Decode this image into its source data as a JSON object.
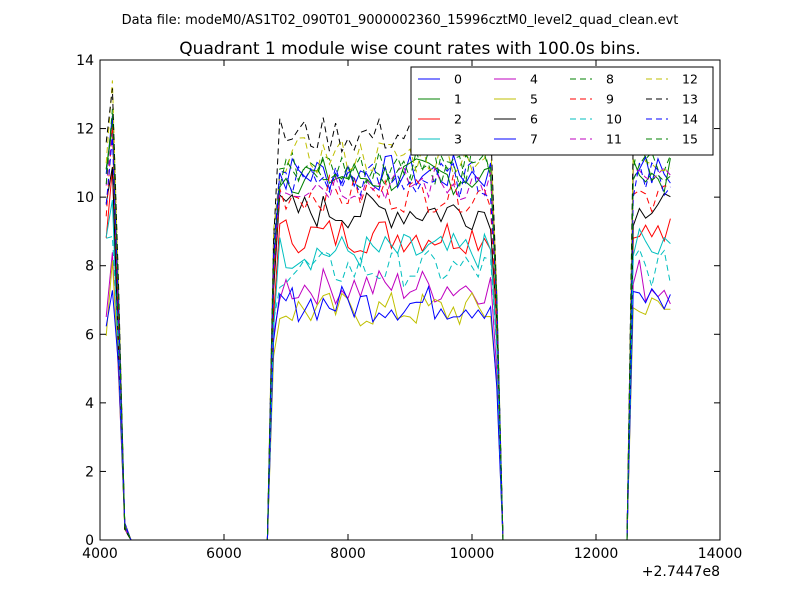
{
  "chart_data": {
    "type": "line",
    "suptitle": "Data file: modeM0/AS1T02_090T01_9000002360_15996cztM0_level2_quad_clean.evt",
    "title": "Quadrant 1 module wise count rates with 100.0s bins.",
    "xlabel": "",
    "ylabel": "",
    "x_offset_label": "+2.7447e8",
    "xlim": [
      4000,
      14000
    ],
    "ylim": [
      0,
      14
    ],
    "xticks": [
      "4000",
      "6000",
      "8000",
      "10000",
      "12000",
      "14000"
    ],
    "yticks": [
      "0",
      "2",
      "4",
      "6",
      "8",
      "10",
      "12",
      "14"
    ],
    "grid": false,
    "legend": {
      "position": "top-right",
      "columns": 4
    },
    "segments": [
      {
        "x_start": 4100,
        "x_end": 4300,
        "y_end": 0,
        "x_end_zero": 4400,
        "off_until": 6700
      },
      {
        "x_start": 6700,
        "x_end": 10300,
        "x_end_zero": 10500,
        "off_until": 12500
      },
      {
        "x_start": 12700,
        "x_end": 13200
      }
    ],
    "series": [
      {
        "name": "0",
        "color": "#0000ff",
        "style": "solid",
        "level": 10.7
      },
      {
        "name": "1",
        "color": "#008000",
        "style": "solid",
        "level": 10.6
      },
      {
        "name": "2",
        "color": "#ff0000",
        "style": "solid",
        "level": 8.9
      },
      {
        "name": "3",
        "color": "#00bfbf",
        "style": "solid",
        "level": 8.4
      },
      {
        "name": "4",
        "color": "#bf00bf",
        "style": "solid",
        "level": 7.4
      },
      {
        "name": "5",
        "color": "#bfbf00",
        "style": "solid",
        "level": 6.7
      },
      {
        "name": "6",
        "color": "#000000",
        "style": "solid",
        "level": 9.6
      },
      {
        "name": "7",
        "color": "#0000ff",
        "style": "solid",
        "level": 6.9
      },
      {
        "name": "8",
        "color": "#008000",
        "style": "dashed",
        "level": 10.9
      },
      {
        "name": "9",
        "color": "#ff0000",
        "style": "dashed",
        "level": 10.1
      },
      {
        "name": "10",
        "color": "#00bfbf",
        "style": "dashed",
        "level": 7.9
      },
      {
        "name": "11",
        "color": "#bf00bf",
        "style": "dashed",
        "level": 10.4
      },
      {
        "name": "12",
        "color": "#bfbf00",
        "style": "dashed",
        "level": 11.2
      },
      {
        "name": "13",
        "color": "#000000",
        "style": "dashed",
        "level": 11.8
      },
      {
        "name": "14",
        "color": "#0000ff",
        "style": "dashed",
        "level": 10.5
      },
      {
        "name": "15",
        "color": "#008000",
        "style": "dashed",
        "level": 10.8
      }
    ],
    "x": [
      4100,
      4200,
      4300,
      4400,
      4500,
      6700,
      6800,
      6900,
      7000,
      7100,
      7200,
      7300,
      7400,
      7500,
      7600,
      7700,
      7800,
      7900,
      8000,
      8100,
      8200,
      8300,
      8400,
      8500,
      8600,
      8700,
      8800,
      8900,
      9000,
      9100,
      9200,
      9300,
      9400,
      9500,
      9600,
      9700,
      9800,
      9900,
      10000,
      10100,
      10200,
      10300,
      10400,
      10500,
      12500,
      12600,
      12700,
      12800,
      12900,
      13000,
      13100,
      13200
    ]
  }
}
